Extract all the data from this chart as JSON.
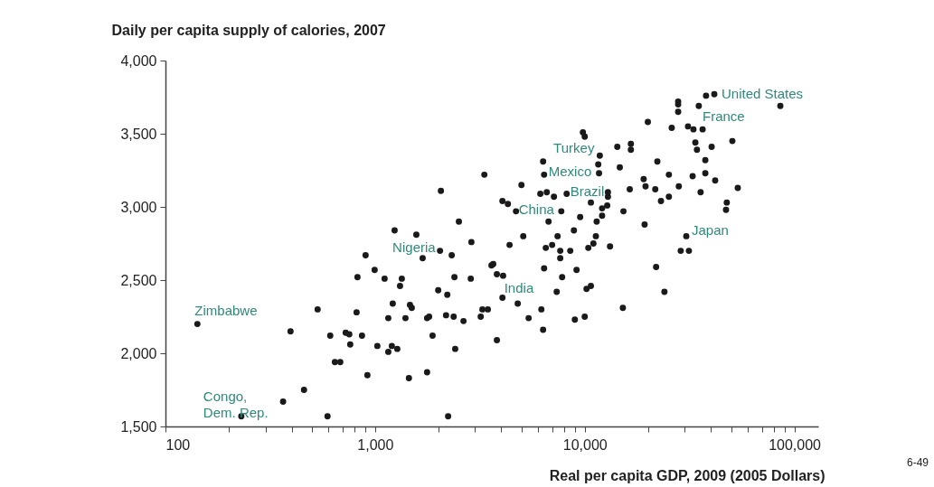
{
  "chart_data": {
    "type": "scatter",
    "ylabel": "Daily per capita supply of calories, 2007",
    "xlabel": "Real per capita GDP, 2009 (2005 Dollars)",
    "log": "x",
    "grid": false,
    "marker": "circle",
    "xlim": [
      100,
      130000
    ],
    "xticks": [
      {
        "value": 100,
        "label": "100"
      },
      {
        "value": 200,
        "label": null
      },
      {
        "value": 300,
        "label": null
      },
      {
        "value": 400,
        "label": null
      },
      {
        "value": 500,
        "label": null
      },
      {
        "value": 600,
        "label": null
      },
      {
        "value": 700,
        "label": null
      },
      {
        "value": 800,
        "label": null
      },
      {
        "value": 900,
        "label": null
      },
      {
        "value": 1000,
        "label": "1,000"
      },
      {
        "value": 2000,
        "label": null
      },
      {
        "value": 3000,
        "label": null
      },
      {
        "value": 4000,
        "label": null
      },
      {
        "value": 5000,
        "label": null
      },
      {
        "value": 6000,
        "label": null
      },
      {
        "value": 7000,
        "label": null
      },
      {
        "value": 8000,
        "label": null
      },
      {
        "value": 9000,
        "label": null
      },
      {
        "value": 10000,
        "label": "10,000"
      },
      {
        "value": 20000,
        "label": null
      },
      {
        "value": 30000,
        "label": null
      },
      {
        "value": 40000,
        "label": null
      },
      {
        "value": 50000,
        "label": null
      },
      {
        "value": 60000,
        "label": null
      },
      {
        "value": 70000,
        "label": null
      },
      {
        "value": 80000,
        "label": null
      },
      {
        "value": 90000,
        "label": null
      },
      {
        "value": 100000,
        "label": "100,000"
      }
    ],
    "ylim": [
      1500,
      4000
    ],
    "yticks": [
      {
        "value": 1500,
        "label": "1,500"
      },
      {
        "value": 2000,
        "label": "2,000"
      },
      {
        "value": 2500,
        "label": "2,500"
      },
      {
        "value": 3000,
        "label": "3,000"
      },
      {
        "value": 3500,
        "label": "3,500"
      },
      {
        "value": 4000,
        "label": "4,000"
      }
    ],
    "series": [
      {
        "color": "#1a1a1a",
        "x": [
          142,
          230,
          364,
          458,
          395,
          532,
          593,
          611,
          724,
          753,
          761,
          643,
          682,
          816,
          866,
          824,
          901,
          995,
          1110,
          919,
          1025,
          1202,
          1276,
          1156,
          1156,
          1396,
          1214,
          1467,
          1496,
          1341,
          1315,
          1239,
          1573,
          1686,
          2040,
          2320,
          2880,
          1770,
          1810,
          1880,
          1770,
          1450,
          2000,
          2210,
          2180,
          2370,
          2410,
          2230,
          2390,
          2860,
          2640,
          2060,
          2510,
          3190,
          3250,
          3450,
          3320,
          3590,
          3660,
          3810,
          4080,
          3810,
          4380,
          4050,
          4050,
          4300,
          4700,
          4790,
          4990,
          5090,
          5400,
          6210,
          6330,
          6400,
          6140,
          6330,
          6400,
          6590,
          7130,
          6720,
          6520,
          6990,
          7420,
          7640,
          7640,
          7350,
          7800,
          7730,
          8200,
          8530,
          8970,
          9140,
          8880,
          9510,
          9800,
          10000,
          10000,
          10200,
          10700,
          10400,
          11000,
          11300,
          10700,
          11400,
          12100,
          12100,
          11600,
          11700,
          11800,
          12800,
          12900,
          12900,
          13200,
          14300,
          14700,
          15200,
          15300,
          16600,
          16600,
          16400,
          19100,
          19500,
          19300,
          20000,
          21700,
          21900,
          22200,
          23100,
          24000,
          25200,
          25200,
          26000,
          27900,
          27900,
          27900,
          28100,
          28700,
          31400,
          30500,
          31100,
          33000,
          36500,
          32700,
          33700,
          34300,
          35000,
          35700,
          37600,
          37600,
          37900,
          41500,
          40300,
          41900,
          47200,
          47600,
          50600,
          53700,
          85700
        ],
        "values": [
          2200,
          1570,
          1670,
          1750,
          2150,
          2300,
          1570,
          2120,
          2140,
          2130,
          2060,
          1940,
          1940,
          2280,
          2120,
          2520,
          2670,
          2570,
          2510,
          1850,
          2050,
          2050,
          2030,
          2010,
          2240,
          2240,
          2340,
          2330,
          2310,
          2510,
          2460,
          2840,
          2810,
          2650,
          2700,
          2670,
          2760,
          2240,
          2250,
          2120,
          1870,
          1830,
          2430,
          2400,
          2260,
          2250,
          2030,
          1570,
          2520,
          2510,
          2220,
          3110,
          2900,
          2250,
          2300,
          2300,
          3220,
          2600,
          2610,
          2540,
          2530,
          2090,
          2740,
          2380,
          3040,
          3020,
          2970,
          2340,
          3150,
          2800,
          2240,
          2300,
          2160,
          2580,
          3090,
          3310,
          3220,
          3100,
          3070,
          2900,
          2720,
          2740,
          2800,
          2700,
          2650,
          2420,
          2520,
          2970,
          3090,
          2700,
          2230,
          2570,
          2840,
          2930,
          3510,
          3480,
          2250,
          2440,
          2460,
          2720,
          2750,
          2800,
          3030,
          2900,
          2990,
          2940,
          3290,
          3230,
          3350,
          3010,
          3100,
          3070,
          2730,
          3410,
          3270,
          2310,
          2970,
          3430,
          3390,
          3120,
          3190,
          3140,
          2880,
          3580,
          3120,
          2590,
          3310,
          3040,
          2420,
          3220,
          3070,
          3540,
          3720,
          3700,
          3650,
          3140,
          2700,
          2700,
          2800,
          3550,
          3530,
          3530,
          3210,
          3440,
          3390,
          3690,
          3100,
          3320,
          3230,
          3760,
          3770,
          3410,
          3180,
          2980,
          3030,
          3450,
          3130,
          3690
        ]
      }
    ],
    "annotations": [
      {
        "text": "United States",
        "x": 41500,
        "y": 3770
      },
      {
        "text": "France",
        "x": 31100,
        "y": 3550
      },
      {
        "text": "Turkey",
        "x": 11800,
        "y": 3350
      },
      {
        "text": "Mexico",
        "x": 6400,
        "y": 3220
      },
      {
        "text": "Brazil",
        "x": 8200,
        "y": 3090
      },
      {
        "text": "China",
        "x": 4700,
        "y": 2970
      },
      {
        "text": "Japan",
        "x": 30500,
        "y": 2800
      },
      {
        "text": "India",
        "x": 4050,
        "y": 2380
      },
      {
        "text": "Nigeria",
        "x": 2040,
        "y": 2700
      },
      {
        "text": "Zimbabwe",
        "x": 142,
        "y": 2200
      },
      {
        "text": "Congo,\nDem. Rep.",
        "x": 230,
        "y": 1570
      },
      "6-49"
    ]
  }
}
